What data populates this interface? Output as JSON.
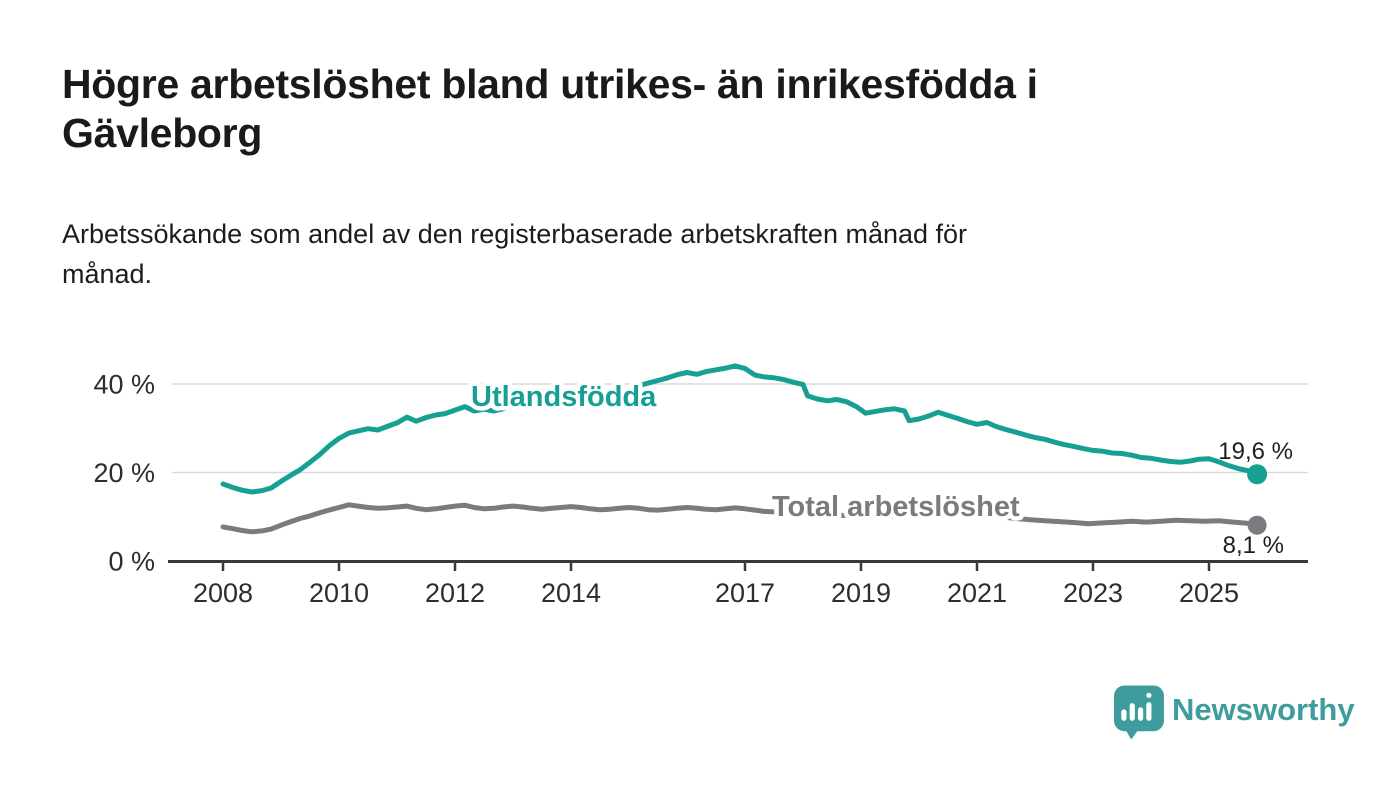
{
  "page": {
    "background": "#ffffff"
  },
  "branding": {
    "name": "Newsworthy",
    "icon": "newsworthy-speech-bubble-bar-chart-icon",
    "color": "#3f9c9c"
  },
  "palette": {
    "line_teal": "#16a094",
    "line_gray": "#7b7a7f",
    "axis": "#39393b",
    "grid": "#d9d9d9",
    "text_dark": "#1a1a1a",
    "tick_text": "#2d2d2d",
    "background": "#ffffff"
  },
  "title_lines": [
    "Högre arbetslöshet bland utrikes- än inrikesfödda i",
    "Gävleborg"
  ],
  "subtitle_lines": [
    "Arbetssökande som andel av den registerbaserade arbetskraften månad för",
    "månad."
  ],
  "chart_data": {
    "type": "line",
    "title": "Högre arbetslöshet bland utrikes- än inrikesfödda i Gävleborg",
    "subtitle": "Arbetssökande som andel av den registerbaserade arbetskraften månad för månad.",
    "unit": "%",
    "grid": "horizontal",
    "legend_position": "inline-labels",
    "ylim": [
      0,
      47
    ],
    "xlim": [
      2007.1,
      2026.7
    ],
    "y_ticks": [
      {
        "value": 0,
        "label": "0 %"
      },
      {
        "value": 20,
        "label": "20 %"
      },
      {
        "value": 40,
        "label": "40 %"
      }
    ],
    "x_ticks": [
      {
        "value": 2008,
        "label": "2008"
      },
      {
        "value": 2010,
        "label": "2010"
      },
      {
        "value": 2012,
        "label": "2012"
      },
      {
        "value": 2014,
        "label": "2014"
      },
      {
        "value": 2017,
        "label": "2017"
      },
      {
        "value": 2019,
        "label": "2019"
      },
      {
        "value": 2021,
        "label": "2021"
      },
      {
        "value": 2023,
        "label": "2023"
      },
      {
        "value": 2025,
        "label": "2025"
      }
    ],
    "series": [
      {
        "name": "Utlandsfödda",
        "color": "#16a094",
        "end_value": 19.6,
        "end_label": "19,6 %",
        "points": [
          [
            2008.0,
            17.4
          ],
          [
            2008.17,
            16.6
          ],
          [
            2008.33,
            16.0
          ],
          [
            2008.5,
            15.6
          ],
          [
            2008.67,
            15.9
          ],
          [
            2008.83,
            16.5
          ],
          [
            2009.0,
            18.0
          ],
          [
            2009.17,
            19.4
          ],
          [
            2009.33,
            20.6
          ],
          [
            2009.5,
            22.3
          ],
          [
            2009.67,
            24.1
          ],
          [
            2009.83,
            26.0
          ],
          [
            2010.0,
            27.7
          ],
          [
            2010.17,
            28.9
          ],
          [
            2010.33,
            29.4
          ],
          [
            2010.5,
            29.9
          ],
          [
            2010.67,
            29.6
          ],
          [
            2010.83,
            30.4
          ],
          [
            2011.0,
            31.2
          ],
          [
            2011.17,
            32.5
          ],
          [
            2011.33,
            31.6
          ],
          [
            2011.5,
            32.4
          ],
          [
            2011.67,
            33.0
          ],
          [
            2011.83,
            33.3
          ],
          [
            2012.0,
            34.1
          ],
          [
            2012.17,
            34.9
          ],
          [
            2012.33,
            33.9
          ],
          [
            2012.5,
            34.3
          ],
          [
            2012.67,
            33.9
          ],
          [
            2012.83,
            34.4
          ],
          [
            2013.0,
            34.9
          ],
          [
            2013.17,
            35.3
          ],
          [
            2013.33,
            35.0
          ],
          [
            2013.5,
            35.4
          ],
          [
            2013.67,
            35.2
          ],
          [
            2013.83,
            35.8
          ],
          [
            2014.0,
            36.1
          ],
          [
            2014.17,
            36.5
          ],
          [
            2014.33,
            36.3
          ],
          [
            2014.5,
            36.9
          ],
          [
            2014.67,
            37.4
          ],
          [
            2014.83,
            38.2
          ],
          [
            2015.0,
            38.9
          ],
          [
            2015.17,
            39.6
          ],
          [
            2015.33,
            40.2
          ],
          [
            2015.5,
            40.8
          ],
          [
            2015.67,
            41.4
          ],
          [
            2015.83,
            42.1
          ],
          [
            2016.0,
            42.6
          ],
          [
            2016.17,
            42.2
          ],
          [
            2016.33,
            42.8
          ],
          [
            2016.5,
            43.2
          ],
          [
            2016.67,
            43.6
          ],
          [
            2016.83,
            44.1
          ],
          [
            2017.0,
            43.5
          ],
          [
            2017.17,
            42.0
          ],
          [
            2017.33,
            41.6
          ],
          [
            2017.5,
            41.4
          ],
          [
            2017.67,
            41.0
          ],
          [
            2017.83,
            40.4
          ],
          [
            2018.0,
            39.9
          ],
          [
            2018.08,
            37.3
          ],
          [
            2018.25,
            36.6
          ],
          [
            2018.42,
            36.2
          ],
          [
            2018.58,
            36.5
          ],
          [
            2018.75,
            36.0
          ],
          [
            2018.92,
            34.9
          ],
          [
            2019.08,
            33.4
          ],
          [
            2019.25,
            33.8
          ],
          [
            2019.42,
            34.2
          ],
          [
            2019.58,
            34.4
          ],
          [
            2019.75,
            33.9
          ],
          [
            2019.83,
            31.7
          ],
          [
            2020.0,
            32.1
          ],
          [
            2020.17,
            32.8
          ],
          [
            2020.33,
            33.6
          ],
          [
            2020.5,
            32.9
          ],
          [
            2020.67,
            32.2
          ],
          [
            2020.83,
            31.5
          ],
          [
            2021.0,
            30.9
          ],
          [
            2021.17,
            31.3
          ],
          [
            2021.33,
            30.4
          ],
          [
            2021.5,
            29.7
          ],
          [
            2021.67,
            29.1
          ],
          [
            2021.83,
            28.5
          ],
          [
            2022.0,
            27.9
          ],
          [
            2022.17,
            27.5
          ],
          [
            2022.33,
            26.9
          ],
          [
            2022.5,
            26.3
          ],
          [
            2022.67,
            25.9
          ],
          [
            2022.83,
            25.4
          ],
          [
            2023.0,
            25.0
          ],
          [
            2023.17,
            24.8
          ],
          [
            2023.33,
            24.4
          ],
          [
            2023.5,
            24.3
          ],
          [
            2023.67,
            23.9
          ],
          [
            2023.83,
            23.4
          ],
          [
            2024.0,
            23.2
          ],
          [
            2024.17,
            22.8
          ],
          [
            2024.33,
            22.5
          ],
          [
            2024.5,
            22.3
          ],
          [
            2024.67,
            22.6
          ],
          [
            2024.83,
            23.0
          ],
          [
            2025.0,
            23.1
          ],
          [
            2025.17,
            22.4
          ],
          [
            2025.33,
            21.6
          ],
          [
            2025.5,
            20.9
          ],
          [
            2025.67,
            20.4
          ],
          [
            2025.83,
            19.6
          ]
        ]
      },
      {
        "name": "Total arbetslöshet",
        "color": "#7b7a7f",
        "end_value": 8.1,
        "end_label": "8,1 %",
        "points": [
          [
            2008.0,
            7.7
          ],
          [
            2008.17,
            7.3
          ],
          [
            2008.33,
            6.9
          ],
          [
            2008.5,
            6.6
          ],
          [
            2008.67,
            6.8
          ],
          [
            2008.83,
            7.2
          ],
          [
            2009.0,
            8.1
          ],
          [
            2009.17,
            8.9
          ],
          [
            2009.33,
            9.6
          ],
          [
            2009.5,
            10.2
          ],
          [
            2009.67,
            10.9
          ],
          [
            2009.83,
            11.5
          ],
          [
            2010.0,
            12.1
          ],
          [
            2010.17,
            12.7
          ],
          [
            2010.33,
            12.4
          ],
          [
            2010.5,
            12.1
          ],
          [
            2010.67,
            11.9
          ],
          [
            2010.83,
            12.0
          ],
          [
            2011.0,
            12.2
          ],
          [
            2011.17,
            12.4
          ],
          [
            2011.33,
            11.9
          ],
          [
            2011.5,
            11.6
          ],
          [
            2011.67,
            11.8
          ],
          [
            2011.83,
            12.1
          ],
          [
            2012.0,
            12.4
          ],
          [
            2012.17,
            12.6
          ],
          [
            2012.33,
            12.1
          ],
          [
            2012.5,
            11.8
          ],
          [
            2012.67,
            11.9
          ],
          [
            2012.83,
            12.2
          ],
          [
            2013.0,
            12.4
          ],
          [
            2013.17,
            12.2
          ],
          [
            2013.33,
            11.9
          ],
          [
            2013.5,
            11.7
          ],
          [
            2013.67,
            11.9
          ],
          [
            2013.83,
            12.1
          ],
          [
            2014.0,
            12.3
          ],
          [
            2014.17,
            12.1
          ],
          [
            2014.33,
            11.8
          ],
          [
            2014.5,
            11.6
          ],
          [
            2014.67,
            11.7
          ],
          [
            2014.83,
            11.9
          ],
          [
            2015.0,
            12.1
          ],
          [
            2015.17,
            11.9
          ],
          [
            2015.33,
            11.6
          ],
          [
            2015.5,
            11.5
          ],
          [
            2015.67,
            11.7
          ],
          [
            2015.83,
            11.9
          ],
          [
            2016.0,
            12.1
          ],
          [
            2016.17,
            11.9
          ],
          [
            2016.33,
            11.7
          ],
          [
            2016.5,
            11.6
          ],
          [
            2016.67,
            11.8
          ],
          [
            2016.83,
            12.0
          ],
          [
            2017.0,
            11.8
          ],
          [
            2017.17,
            11.5
          ],
          [
            2017.33,
            11.2
          ],
          [
            2017.5,
            11.1
          ],
          [
            2017.67,
            10.9
          ],
          [
            2017.83,
            10.8
          ],
          [
            2018.0,
            10.7
          ],
          [
            2018.33,
            10.4
          ],
          [
            2018.67,
            10.3
          ],
          [
            2019.0,
            10.2
          ],
          [
            2019.33,
            10.1
          ],
          [
            2019.67,
            10.2
          ],
          [
            2020.0,
            10.4
          ],
          [
            2020.33,
            11.3
          ],
          [
            2020.67,
            11.0
          ],
          [
            2021.0,
            10.6
          ],
          [
            2021.33,
            10.1
          ],
          [
            2021.67,
            9.6
          ],
          [
            2021.92,
            9.3
          ],
          [
            2022.17,
            9.1
          ],
          [
            2022.42,
            8.9
          ],
          [
            2022.67,
            8.7
          ],
          [
            2022.92,
            8.4
          ],
          [
            2023.17,
            8.6
          ],
          [
            2023.42,
            8.8
          ],
          [
            2023.67,
            9.0
          ],
          [
            2023.92,
            8.8
          ],
          [
            2024.17,
            9.0
          ],
          [
            2024.42,
            9.2
          ],
          [
            2024.67,
            9.1
          ],
          [
            2024.92,
            9.0
          ],
          [
            2025.17,
            9.1
          ],
          [
            2025.42,
            8.8
          ],
          [
            2025.58,
            8.6
          ],
          [
            2025.75,
            8.4
          ],
          [
            2025.83,
            8.1
          ]
        ]
      }
    ]
  }
}
